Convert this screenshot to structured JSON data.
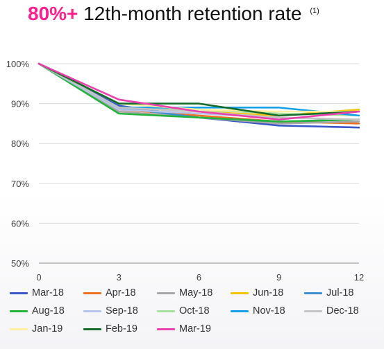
{
  "header": {
    "highlight": "80%+",
    "text": "12th-month retention rate",
    "footnote": "(1)",
    "highlight_color": "#ff1f8f"
  },
  "chart_data": {
    "type": "line",
    "title": "80%+ 12th-month retention rate (1)",
    "xlabel": "",
    "ylabel": "",
    "x": [
      0,
      3,
      6,
      9,
      12
    ],
    "x_ticks": [
      "0",
      "3",
      "6",
      "9",
      "12"
    ],
    "y_ticks": [
      "50%",
      "60%",
      "70%",
      "80%",
      "90%",
      "100%"
    ],
    "ylim": [
      50,
      100
    ],
    "xlim": [
      0,
      12
    ],
    "grid": "horizontal",
    "legend_position": "bottom",
    "series": [
      {
        "name": "Mar-18",
        "color": "#3a57c8",
        "values": [
          100,
          89.5,
          86.5,
          84.5,
          84
        ]
      },
      {
        "name": "Apr-18",
        "color": "#f07020",
        "values": [
          100,
          88.5,
          87,
          85.5,
          85
        ]
      },
      {
        "name": "May-18",
        "color": "#a6a6a6",
        "values": [
          100,
          88,
          86.5,
          85,
          85.5
        ]
      },
      {
        "name": "Jun-18",
        "color": "#f5c400",
        "values": [
          100,
          89,
          88,
          87,
          88.5
        ]
      },
      {
        "name": "Jul-18",
        "color": "#3f8fd0",
        "values": [
          100,
          89,
          86.5,
          85.5,
          86
        ]
      },
      {
        "name": "Aug-18",
        "color": "#22b33a",
        "values": [
          100,
          87.5,
          86.5,
          85.5,
          86
        ]
      },
      {
        "name": "Sep-18",
        "color": "#b4c4ea",
        "values": [
          100,
          88.5,
          87.5,
          86.5,
          86
        ]
      },
      {
        "name": "Oct-18",
        "color": "#a8e0a0",
        "values": [
          100,
          89,
          88.5,
          87.5,
          87
        ]
      },
      {
        "name": "Nov-18",
        "color": "#14a0e8",
        "values": [
          100,
          89,
          89,
          89,
          87
        ]
      },
      {
        "name": "Dec-18",
        "color": "#c4c4c4",
        "values": [
          100,
          89,
          88,
          86.5,
          86
        ]
      },
      {
        "name": "Jan-19",
        "color": "#fff0a0",
        "values": [
          100,
          90,
          88.5,
          88,
          88
        ]
      },
      {
        "name": "Feb-19",
        "color": "#146b2a",
        "values": [
          100,
          90,
          90,
          87,
          88
        ]
      },
      {
        "name": "Mar-19",
        "color": "#ec3fae",
        "values": [
          100,
          91,
          88,
          86,
          88
        ]
      }
    ]
  }
}
